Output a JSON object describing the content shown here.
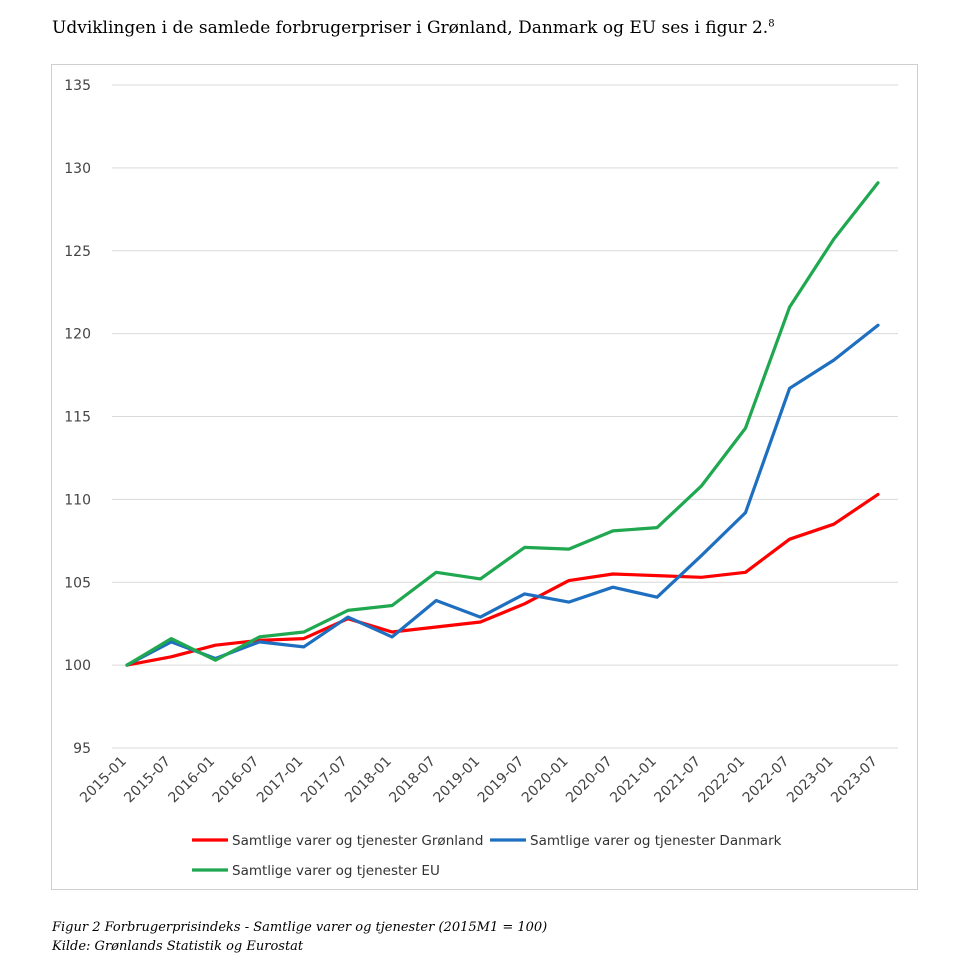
{
  "heading": {
    "text": "Udviklingen i de samlede forbrugerpriser i Grønland, Danmark og EU ses i figur 2.",
    "footnote": "8"
  },
  "caption": {
    "line1": "Figur 2 Forbrugerprisindeks - Samtlige varer og tjenester (2015M1 = 100)",
    "line2": "Kilde: Grønlands Statistik og Eurostat"
  },
  "chart_data": {
    "type": "line",
    "title": "",
    "xlabel": "",
    "ylabel": "",
    "ylim": [
      95,
      135
    ],
    "yticks": [
      95,
      100,
      105,
      110,
      115,
      120,
      125,
      130,
      135
    ],
    "grid": true,
    "legend_position": "bottom",
    "categories": [
      "2015-01",
      "2015-07",
      "2016-01",
      "2016-07",
      "2017-01",
      "2017-07",
      "2018-01",
      "2018-07",
      "2019-01",
      "2019-07",
      "2020-01",
      "2020-07",
      "2021-01",
      "2021-07",
      "2022-01",
      "2022-07",
      "2023-01",
      "2023-07"
    ],
    "series": [
      {
        "name": "Samtlige varer og tjenester Grønland",
        "color": "#ff0000",
        "values": [
          100.0,
          100.5,
          101.2,
          101.5,
          101.6,
          102.8,
          102.0,
          102.3,
          102.6,
          103.7,
          105.1,
          105.5,
          105.4,
          105.3,
          105.6,
          107.6,
          108.5,
          110.3
        ]
      },
      {
        "name": "Samtlige varer og tjenester Danmark",
        "color": "#1f6fc0",
        "values": [
          100.0,
          101.4,
          100.4,
          101.4,
          101.1,
          102.9,
          101.7,
          103.9,
          102.9,
          104.3,
          103.8,
          104.7,
          104.1,
          106.6,
          109.2,
          116.7,
          118.4,
          120.5
        ]
      },
      {
        "name": "Samtlige varer og tjenester EU",
        "color": "#1fa84f",
        "values": [
          100.0,
          101.6,
          100.3,
          101.7,
          102.0,
          103.3,
          103.6,
          105.6,
          105.2,
          107.1,
          107.0,
          108.1,
          108.3,
          110.8,
          114.3,
          121.6,
          125.7,
          129.1
        ]
      }
    ]
  }
}
